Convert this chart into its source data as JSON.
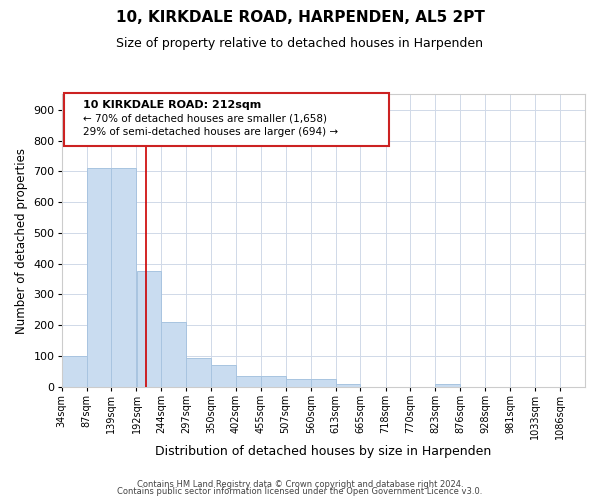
{
  "title": "10, KIRKDALE ROAD, HARPENDEN, AL5 2PT",
  "subtitle": "Size of property relative to detached houses in Harpenden",
  "xlabel": "Distribution of detached houses by size in Harpenden",
  "ylabel": "Number of detached properties",
  "bar_left_edges": [
    34,
    87,
    139,
    192,
    244,
    297,
    350,
    402,
    455,
    507,
    560,
    613,
    665,
    718,
    770,
    823,
    876,
    928,
    981,
    1033
  ],
  "bar_widths": [
    53,
    52,
    53,
    52,
    53,
    53,
    52,
    53,
    52,
    53,
    53,
    52,
    53,
    52,
    53,
    53,
    52,
    53,
    52,
    53
  ],
  "bar_heights": [
    100,
    710,
    710,
    375,
    210,
    95,
    70,
    35,
    35,
    25,
    25,
    10,
    0,
    0,
    0,
    10,
    0,
    0,
    0,
    0
  ],
  "bar_color": "#c9dcf0",
  "bar_edgecolor": "#a8c4e0",
  "vline_x": 212,
  "vline_color": "#cc0000",
  "ylim": [
    0,
    950
  ],
  "yticks": [
    0,
    100,
    200,
    300,
    400,
    500,
    600,
    700,
    800,
    900
  ],
  "xtick_labels": [
    "34sqm",
    "87sqm",
    "139sqm",
    "192sqm",
    "244sqm",
    "297sqm",
    "350sqm",
    "402sqm",
    "455sqm",
    "507sqm",
    "560sqm",
    "613sqm",
    "665sqm",
    "718sqm",
    "770sqm",
    "823sqm",
    "876sqm",
    "928sqm",
    "981sqm",
    "1033sqm",
    "1086sqm"
  ],
  "xtick_positions": [
    34,
    87,
    139,
    192,
    244,
    297,
    350,
    402,
    455,
    507,
    560,
    613,
    665,
    718,
    770,
    823,
    876,
    928,
    981,
    1033,
    1086
  ],
  "xlim_min": 34,
  "xlim_max": 1139,
  "annotation_title": "10 KIRKDALE ROAD: 212sqm",
  "annotation_line1": "← 70% of detached houses are smaller (1,658)",
  "annotation_line2": "29% of semi-detached houses are larger (694) →",
  "footnote1": "Contains HM Land Registry data © Crown copyright and database right 2024.",
  "footnote2": "Contains public sector information licensed under the Open Government Licence v3.0.",
  "background_color": "#ffffff",
  "grid_color": "#d0d9e8",
  "title_fontsize": 11,
  "subtitle_fontsize": 9,
  "xlabel_fontsize": 9,
  "ylabel_fontsize": 8.5,
  "tick_fontsize": 7,
  "ytick_fontsize": 8
}
